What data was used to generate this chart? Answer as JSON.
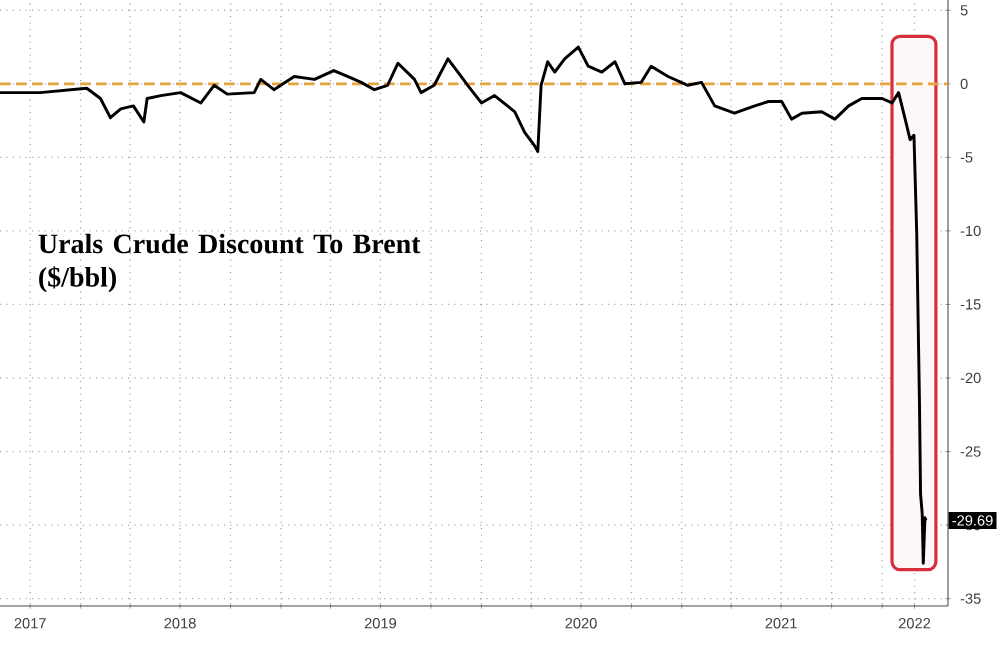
{
  "chart_data": {
    "type": "line",
    "title": "Urals Crude Discount To Brent ($/bbl)",
    "x": [
      "2017-08-07",
      "2017-10-19",
      "2018-01-12",
      "2018-02-06",
      "2018-02-24",
      "2018-03-15",
      "2018-04-07",
      "2018-04-26",
      "2018-05-02",
      "2018-05-27",
      "2018-07-02",
      "2018-08-08",
      "2018-09-01",
      "2018-09-25",
      "2018-11-13",
      "2018-11-25",
      "2018-12-19",
      "2019-01-25",
      "2019-03-03",
      "2019-04-07",
      "2019-05-02",
      "2019-05-27",
      "2019-06-20",
      "2019-07-14",
      "2019-08-02",
      "2019-09-01",
      "2019-09-13",
      "2019-10-07",
      "2019-11-01",
      "2019-11-25",
      "2019-12-07",
      "2020-01-01",
      "2020-01-25",
      "2020-03-02",
      "2020-03-20",
      "2020-04-07",
      "2020-04-13",
      "2020-04-19",
      "2020-05-01",
      "2020-05-14",
      "2020-06-01",
      "2020-06-26",
      "2020-07-14",
      "2020-08-08",
      "2020-09-01",
      "2020-09-19",
      "2020-10-19",
      "2020-11-06",
      "2020-12-07",
      "2021-01-12",
      "2021-02-06",
      "2021-03-02",
      "2021-04-07",
      "2021-05-14",
      "2021-06-08",
      "2021-07-02",
      "2021-07-20",
      "2021-08-08",
      "2021-09-13",
      "2021-10-07",
      "2021-11-01",
      "2021-11-25",
      "2022-01-01",
      "2022-01-19",
      "2022-01-31",
      "2022-02-12",
      "2022-02-21",
      "2022-02-28",
      "2022-03-05",
      "2022-03-10",
      "2022-03-12",
      "2022-03-15",
      "2022-03-17",
      "2022-03-20",
      "2022-03-22"
    ],
    "series": [
      {
        "color": "#000000",
        "values": [
          -0.6,
          -0.6,
          -0.3,
          -1.0,
          -2.3,
          -1.7,
          -1.5,
          -2.6,
          -1.0,
          -0.8,
          -0.6,
          -1.3,
          -0.1,
          -0.7,
          -0.6,
          0.3,
          -0.4,
          0.5,
          0.3,
          0.9,
          0.5,
          0.1,
          -0.4,
          -0.1,
          1.4,
          0.3,
          -0.6,
          -0.1,
          1.7,
          0.5,
          -0.1,
          -1.3,
          -0.8,
          -1.9,
          -3.3,
          -4.2,
          -4.6,
          -0.1,
          1.5,
          0.8,
          1.7,
          2.5,
          1.2,
          0.8,
          1.5,
          0.0,
          0.1,
          1.2,
          0.5,
          -0.1,
          0.1,
          -1.5,
          -2.0,
          -1.5,
          -1.2,
          -1.2,
          -2.4,
          -2.0,
          -1.9,
          -2.4,
          -1.5,
          -1.0,
          -1.0,
          -1.3,
          -0.6,
          -2.4,
          -3.8,
          -3.5,
          -10.1,
          -21.5,
          -27.9,
          -29.2,
          -32.6,
          -29.5,
          -29.69
        ]
      }
    ],
    "xlim": [
      "2017-08-07",
      "2022-05-01"
    ],
    "ylim": [
      -35.5,
      5.7
    ],
    "yticks": [
      5,
      0,
      -5,
      -10,
      -15,
      -20,
      -25,
      -30,
      -35
    ],
    "xticks": [
      {
        "value": "2017-10-01",
        "label": "2017"
      },
      {
        "value": "2018-01-01",
        "label": null
      },
      {
        "value": "2018-04-01",
        "label": null
      },
      {
        "value": "2018-07-01",
        "label": "2018"
      },
      {
        "value": "2018-10-01",
        "label": null
      },
      {
        "value": "2019-01-01",
        "label": null
      },
      {
        "value": "2019-04-01",
        "label": null
      },
      {
        "value": "2019-07-01",
        "label": "2019"
      },
      {
        "value": "2019-10-01",
        "label": null
      },
      {
        "value": "2020-01-01",
        "label": null
      },
      {
        "value": "2020-04-01",
        "label": null
      },
      {
        "value": "2020-07-01",
        "label": "2020"
      },
      {
        "value": "2020-10-01",
        "label": null
      },
      {
        "value": "2021-01-01",
        "label": null
      },
      {
        "value": "2021-04-01",
        "label": null
      },
      {
        "value": "2021-07-01",
        "label": "2021"
      },
      {
        "value": "2021-10-01",
        "label": null
      },
      {
        "value": "2022-01-01",
        "label": null
      },
      {
        "value": "2022-03-01",
        "label": "2022"
      }
    ],
    "grid": true,
    "ref_lines": [
      {
        "axis": "y",
        "value": 0,
        "color": "#e8a33c",
        "line_style": "dashed"
      }
    ],
    "bands": [
      {
        "axis": "x",
        "from": "2022-01-19",
        "to": "2022-04-09",
        "color": "#d62e3a"
      }
    ],
    "annotations": [
      {
        "text": "-29.69",
        "x": "2022-03-22",
        "y": -29.69
      }
    ]
  }
}
